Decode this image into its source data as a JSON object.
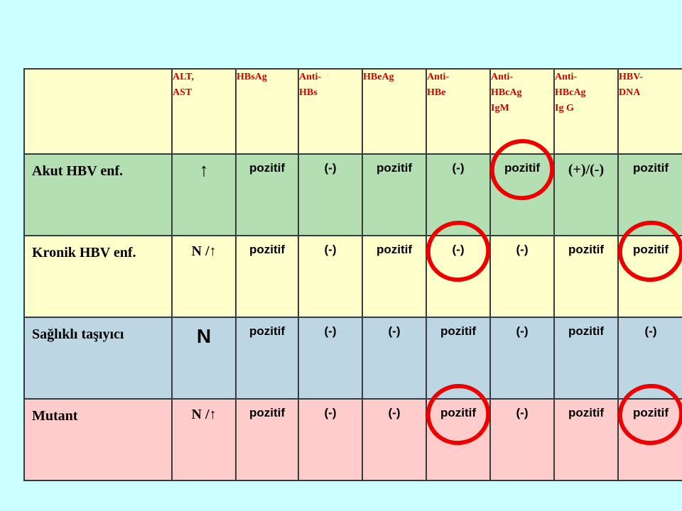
{
  "table": {
    "headers": [
      "",
      "ALT,\nAST",
      "HBsAg",
      "Anti-\nHBs",
      "HBeAg",
      "Anti-\nHBe",
      "Anti-\nHBcAg\nIgM",
      "Anti-\nHBcAg\nIg G",
      "HBV-\nDNA"
    ],
    "rows": [
      {
        "name": "Akut HBV enf.",
        "values": [
          "↑",
          "pozitif",
          "(-)",
          "pozitif",
          "(-)",
          "pozitif",
          "(+)/(-)",
          "pozitif"
        ]
      },
      {
        "name": "Kronik HBV enf.",
        "values": [
          "N /↑",
          "pozitif",
          "(-)",
          "pozitif",
          "(-)",
          "(-)",
          "pozitif",
          "pozitif"
        ]
      },
      {
        "name": "Sağlıklı taşıyıcı",
        "values": [
          "N",
          "pozitif",
          "(-)",
          "(-)",
          "pozitif",
          "(-)",
          "pozitif",
          "(-)"
        ]
      },
      {
        "name": "Mutant",
        "values": [
          "N /↑",
          "pozitif",
          "(-)",
          "(-)",
          "pozitif",
          "(-)",
          "pozitif",
          "pozitif"
        ]
      }
    ]
  },
  "highlights": [
    {
      "row": 0,
      "col": 6
    },
    {
      "row": 1,
      "col": 5
    },
    {
      "row": 1,
      "col": 8
    },
    {
      "row": 3,
      "col": 5
    },
    {
      "row": 3,
      "col": 8
    }
  ],
  "colors": {
    "background": "#ccffff",
    "header_row": "#ffffcc",
    "header_text": "#cc0000",
    "row_acute": "#b3dfb3",
    "row_chronic": "#ffffcc",
    "row_carrier": "#bcd7e3",
    "row_mutant": "#ffcccc",
    "highlight": "#ee0000"
  }
}
